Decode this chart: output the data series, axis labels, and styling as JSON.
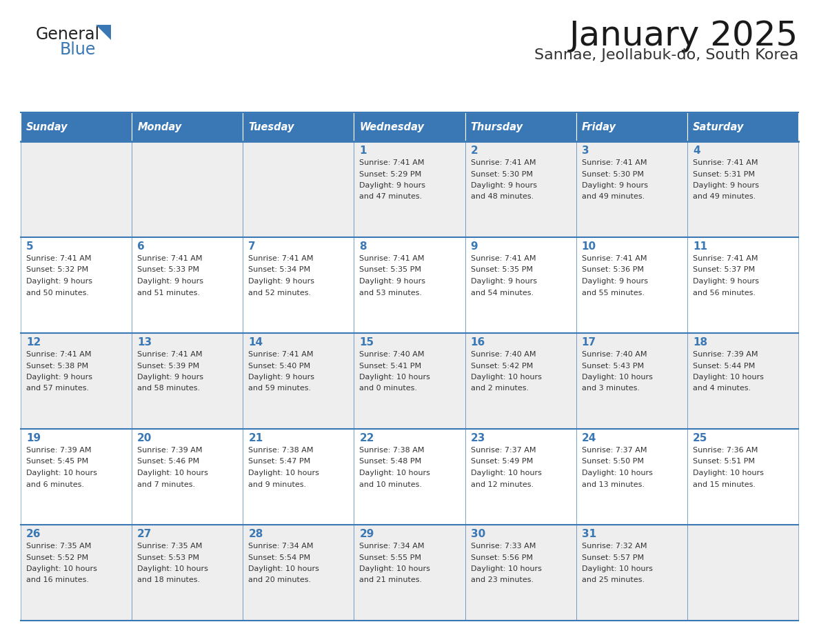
{
  "title": "January 2025",
  "subtitle": "Sannae, Jeollabuk-do, South Korea",
  "days_of_week": [
    "Sunday",
    "Monday",
    "Tuesday",
    "Wednesday",
    "Thursday",
    "Friday",
    "Saturday"
  ],
  "header_bg_color": "#3A78B5",
  "header_text_color": "#FFFFFF",
  "row_bg_colors": [
    "#EEEEEE",
    "#FFFFFF",
    "#EEEEEE",
    "#FFFFFF",
    "#EEEEEE"
  ],
  "cell_border_color": "#3A78B5",
  "title_color": "#1a1a1a",
  "subtitle_color": "#333333",
  "day_number_color": "#3A78B5",
  "cell_text_color": "#333333",
  "logo_general_color": "#222222",
  "logo_blue_color": "#3A78B5",
  "calendar_data": [
    {
      "day": 1,
      "col": 3,
      "row": 0,
      "sunrise": "7:41 AM",
      "sunset": "5:29 PM",
      "daylight_hours": 9,
      "daylight_minutes": 47
    },
    {
      "day": 2,
      "col": 4,
      "row": 0,
      "sunrise": "7:41 AM",
      "sunset": "5:30 PM",
      "daylight_hours": 9,
      "daylight_minutes": 48
    },
    {
      "day": 3,
      "col": 5,
      "row": 0,
      "sunrise": "7:41 AM",
      "sunset": "5:30 PM",
      "daylight_hours": 9,
      "daylight_minutes": 49
    },
    {
      "day": 4,
      "col": 6,
      "row": 0,
      "sunrise": "7:41 AM",
      "sunset": "5:31 PM",
      "daylight_hours": 9,
      "daylight_minutes": 49
    },
    {
      "day": 5,
      "col": 0,
      "row": 1,
      "sunrise": "7:41 AM",
      "sunset": "5:32 PM",
      "daylight_hours": 9,
      "daylight_minutes": 50
    },
    {
      "day": 6,
      "col": 1,
      "row": 1,
      "sunrise": "7:41 AM",
      "sunset": "5:33 PM",
      "daylight_hours": 9,
      "daylight_minutes": 51
    },
    {
      "day": 7,
      "col": 2,
      "row": 1,
      "sunrise": "7:41 AM",
      "sunset": "5:34 PM",
      "daylight_hours": 9,
      "daylight_minutes": 52
    },
    {
      "day": 8,
      "col": 3,
      "row": 1,
      "sunrise": "7:41 AM",
      "sunset": "5:35 PM",
      "daylight_hours": 9,
      "daylight_minutes": 53
    },
    {
      "day": 9,
      "col": 4,
      "row": 1,
      "sunrise": "7:41 AM",
      "sunset": "5:35 PM",
      "daylight_hours": 9,
      "daylight_minutes": 54
    },
    {
      "day": 10,
      "col": 5,
      "row": 1,
      "sunrise": "7:41 AM",
      "sunset": "5:36 PM",
      "daylight_hours": 9,
      "daylight_minutes": 55
    },
    {
      "day": 11,
      "col": 6,
      "row": 1,
      "sunrise": "7:41 AM",
      "sunset": "5:37 PM",
      "daylight_hours": 9,
      "daylight_minutes": 56
    },
    {
      "day": 12,
      "col": 0,
      "row": 2,
      "sunrise": "7:41 AM",
      "sunset": "5:38 PM",
      "daylight_hours": 9,
      "daylight_minutes": 57
    },
    {
      "day": 13,
      "col": 1,
      "row": 2,
      "sunrise": "7:41 AM",
      "sunset": "5:39 PM",
      "daylight_hours": 9,
      "daylight_minutes": 58
    },
    {
      "day": 14,
      "col": 2,
      "row": 2,
      "sunrise": "7:41 AM",
      "sunset": "5:40 PM",
      "daylight_hours": 9,
      "daylight_minutes": 59
    },
    {
      "day": 15,
      "col": 3,
      "row": 2,
      "sunrise": "7:40 AM",
      "sunset": "5:41 PM",
      "daylight_hours": 10,
      "daylight_minutes": 0
    },
    {
      "day": 16,
      "col": 4,
      "row": 2,
      "sunrise": "7:40 AM",
      "sunset": "5:42 PM",
      "daylight_hours": 10,
      "daylight_minutes": 2
    },
    {
      "day": 17,
      "col": 5,
      "row": 2,
      "sunrise": "7:40 AM",
      "sunset": "5:43 PM",
      "daylight_hours": 10,
      "daylight_minutes": 3
    },
    {
      "day": 18,
      "col": 6,
      "row": 2,
      "sunrise": "7:39 AM",
      "sunset": "5:44 PM",
      "daylight_hours": 10,
      "daylight_minutes": 4
    },
    {
      "day": 19,
      "col": 0,
      "row": 3,
      "sunrise": "7:39 AM",
      "sunset": "5:45 PM",
      "daylight_hours": 10,
      "daylight_minutes": 6
    },
    {
      "day": 20,
      "col": 1,
      "row": 3,
      "sunrise": "7:39 AM",
      "sunset": "5:46 PM",
      "daylight_hours": 10,
      "daylight_minutes": 7
    },
    {
      "day": 21,
      "col": 2,
      "row": 3,
      "sunrise": "7:38 AM",
      "sunset": "5:47 PM",
      "daylight_hours": 10,
      "daylight_minutes": 9
    },
    {
      "day": 22,
      "col": 3,
      "row": 3,
      "sunrise": "7:38 AM",
      "sunset": "5:48 PM",
      "daylight_hours": 10,
      "daylight_minutes": 10
    },
    {
      "day": 23,
      "col": 4,
      "row": 3,
      "sunrise": "7:37 AM",
      "sunset": "5:49 PM",
      "daylight_hours": 10,
      "daylight_minutes": 12
    },
    {
      "day": 24,
      "col": 5,
      "row": 3,
      "sunrise": "7:37 AM",
      "sunset": "5:50 PM",
      "daylight_hours": 10,
      "daylight_minutes": 13
    },
    {
      "day": 25,
      "col": 6,
      "row": 3,
      "sunrise": "7:36 AM",
      "sunset": "5:51 PM",
      "daylight_hours": 10,
      "daylight_minutes": 15
    },
    {
      "day": 26,
      "col": 0,
      "row": 4,
      "sunrise": "7:35 AM",
      "sunset": "5:52 PM",
      "daylight_hours": 10,
      "daylight_minutes": 16
    },
    {
      "day": 27,
      "col": 1,
      "row": 4,
      "sunrise": "7:35 AM",
      "sunset": "5:53 PM",
      "daylight_hours": 10,
      "daylight_minutes": 18
    },
    {
      "day": 28,
      "col": 2,
      "row": 4,
      "sunrise": "7:34 AM",
      "sunset": "5:54 PM",
      "daylight_hours": 10,
      "daylight_minutes": 20
    },
    {
      "day": 29,
      "col": 3,
      "row": 4,
      "sunrise": "7:34 AM",
      "sunset": "5:55 PM",
      "daylight_hours": 10,
      "daylight_minutes": 21
    },
    {
      "day": 30,
      "col": 4,
      "row": 4,
      "sunrise": "7:33 AM",
      "sunset": "5:56 PM",
      "daylight_hours": 10,
      "daylight_minutes": 23
    },
    {
      "day": 31,
      "col": 5,
      "row": 4,
      "sunrise": "7:32 AM",
      "sunset": "5:57 PM",
      "daylight_hours": 10,
      "daylight_minutes": 25
    }
  ]
}
